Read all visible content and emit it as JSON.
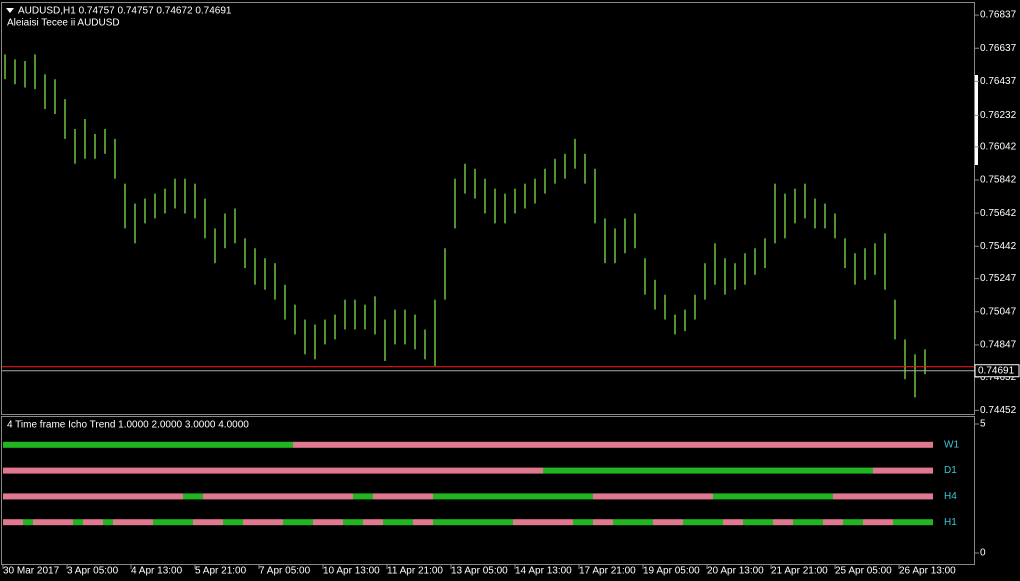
{
  "chart_data": [
    {
      "type": "hilo",
      "title": "AUDUSD,H1  0.74757 0.74757 0.74672 0.74691",
      "subtitle": "Aleiaisi Tecee ii AUDUSD",
      "color": "#6cc23a",
      "high": [
        0.766,
        0.7657,
        0.7656,
        0.766,
        0.7648,
        0.7645,
        0.7633,
        0.7615,
        0.7621,
        0.7612,
        0.7615,
        0.7609,
        0.7582,
        0.757,
        0.7573,
        0.7576,
        0.7579,
        0.7585,
        0.7585,
        0.7582,
        0.7573,
        0.7555,
        0.7564,
        0.7567,
        0.7549,
        0.7543,
        0.7537,
        0.7534,
        0.7521,
        0.7509,
        0.75,
        0.7497,
        0.75,
        0.7503,
        0.7512,
        0.7512,
        0.7509,
        0.7514,
        0.75,
        0.7506,
        0.7506,
        0.7503,
        0.7494,
        0.7512,
        0.7543,
        0.7585,
        0.7594,
        0.7591,
        0.7585,
        0.7579,
        0.7576,
        0.7579,
        0.7582,
        0.7585,
        0.7591,
        0.7597,
        0.76,
        0.7609,
        0.76,
        0.7591,
        0.7561,
        0.7555,
        0.7561,
        0.7564,
        0.7537,
        0.7524,
        0.7515,
        0.7503,
        0.7506,
        0.7515,
        0.7534,
        0.7546,
        0.7537,
        0.7534,
        0.754,
        0.7543,
        0.7549,
        0.7582,
        0.7576,
        0.7579,
        0.7582,
        0.7573,
        0.757,
        0.7564,
        0.7549,
        0.754,
        0.7543,
        0.7546,
        0.7552,
        0.7512,
        0.7488,
        0.7479,
        0.7482
      ],
      "low": [
        0.7645,
        0.7642,
        0.764,
        0.7639,
        0.7627,
        0.7624,
        0.7609,
        0.7594,
        0.7597,
        0.7597,
        0.76,
        0.7585,
        0.7555,
        0.7546,
        0.7558,
        0.7561,
        0.7564,
        0.7567,
        0.7564,
        0.7561,
        0.7549,
        0.7534,
        0.7543,
        0.7546,
        0.7531,
        0.7521,
        0.7518,
        0.7512,
        0.75,
        0.7491,
        0.7479,
        0.7476,
        0.7485,
        0.7488,
        0.7494,
        0.7494,
        0.7494,
        0.7491,
        0.7475,
        0.7485,
        0.7485,
        0.7482,
        0.7476,
        0.7472,
        0.7512,
        0.7555,
        0.7576,
        0.7573,
        0.7564,
        0.7558,
        0.7558,
        0.7564,
        0.7567,
        0.757,
        0.7576,
        0.7582,
        0.7585,
        0.7591,
        0.7582,
        0.7558,
        0.7534,
        0.7534,
        0.754,
        0.7543,
        0.7515,
        0.7506,
        0.75,
        0.7491,
        0.7493,
        0.75,
        0.7512,
        0.7521,
        0.7515,
        0.7518,
        0.7521,
        0.7527,
        0.7531,
        0.7546,
        0.7549,
        0.7558,
        0.7561,
        0.7555,
        0.7555,
        0.7549,
        0.7531,
        0.7521,
        0.7524,
        0.7527,
        0.7518,
        0.7488,
        0.7464,
        0.7453,
        0.7467
      ],
      "ylim": [
        0.7443,
        0.7691
      ],
      "yticks": [
        0.76837,
        0.76637,
        0.76437,
        0.76232,
        0.76042,
        0.75842,
        0.75642,
        0.75442,
        0.75247,
        0.75047,
        0.74847,
        0.74652,
        0.74452
      ],
      "last_price": 0.74691,
      "ask_line": 0.74715,
      "ask_color": "#ff2020",
      "x_labels": [
        "30 Mar 2017",
        "3 Apr 05:00",
        "4 Apr 13:00",
        "5 Apr 21:00",
        "7 Apr 05:00",
        "10 Apr 13:00",
        "11 Apr 21:00",
        "13 Apr 05:00",
        "14 Apr 13:00",
        "17 Apr 21:00",
        "19 Apr 05:00",
        "20 Apr 13:00",
        "21 Apr 21:00",
        "25 Apr 05:00",
        "26 Apr 13:00"
      ]
    },
    {
      "type": "timeline",
      "title": "4 Time frame Icho Trend 1.0000 2.0000 3.0000 4.0000",
      "ylim": [
        0,
        5
      ],
      "yticks": [
        5,
        0
      ],
      "rows": [
        {
          "name": "W1",
          "level": 4,
          "runs": [
            {
              "color": "#22b522",
              "bars": 29
            },
            {
              "color": "#e07890",
              "bars": 64
            }
          ]
        },
        {
          "name": "D1",
          "level": 3,
          "runs": [
            {
              "color": "#e07890",
              "bars": 54
            },
            {
              "color": "#22b522",
              "bars": 33
            },
            {
              "color": "#e07890",
              "bars": 6
            }
          ]
        },
        {
          "name": "H4",
          "level": 2,
          "runs": [
            {
              "color": "#e07890",
              "bars": 18
            },
            {
              "color": "#22b522",
              "bars": 2
            },
            {
              "color": "#e07890",
              "bars": 15
            },
            {
              "color": "#22b522",
              "bars": 2
            },
            {
              "color": "#e07890",
              "bars": 6
            },
            {
              "color": "#22b522",
              "bars": 16
            },
            {
              "color": "#e07890",
              "bars": 12
            },
            {
              "color": "#22b522",
              "bars": 12
            },
            {
              "color": "#e07890",
              "bars": 10
            }
          ]
        },
        {
          "name": "H1",
          "level": 1,
          "runs": [
            {
              "color": "#e07890",
              "bars": 2
            },
            {
              "color": "#22b522",
              "bars": 1
            },
            {
              "color": "#e07890",
              "bars": 4
            },
            {
              "color": "#22b522",
              "bars": 1
            },
            {
              "color": "#e07890",
              "bars": 2
            },
            {
              "color": "#22b522",
              "bars": 1
            },
            {
              "color": "#e07890",
              "bars": 4
            },
            {
              "color": "#22b522",
              "bars": 4
            },
            {
              "color": "#e07890",
              "bars": 3
            },
            {
              "color": "#22b522",
              "bars": 2
            },
            {
              "color": "#e07890",
              "bars": 4
            },
            {
              "color": "#22b522",
              "bars": 3
            },
            {
              "color": "#e07890",
              "bars": 3
            },
            {
              "color": "#22b522",
              "bars": 2
            },
            {
              "color": "#e07890",
              "bars": 2
            },
            {
              "color": "#22b522",
              "bars": 3
            },
            {
              "color": "#e07890",
              "bars": 2
            },
            {
              "color": "#22b522",
              "bars": 8
            },
            {
              "color": "#e07890",
              "bars": 6
            },
            {
              "color": "#22b522",
              "bars": 2
            },
            {
              "color": "#e07890",
              "bars": 2
            },
            {
              "color": "#22b522",
              "bars": 4
            },
            {
              "color": "#e07890",
              "bars": 3
            },
            {
              "color": "#22b522",
              "bars": 4
            },
            {
              "color": "#e07890",
              "bars": 2
            },
            {
              "color": "#22b522",
              "bars": 3
            },
            {
              "color": "#e07890",
              "bars": 2
            },
            {
              "color": "#22b522",
              "bars": 3
            },
            {
              "color": "#e07890",
              "bars": 2
            },
            {
              "color": "#22b522",
              "bars": 2
            },
            {
              "color": "#e07890",
              "bars": 3
            },
            {
              "color": "#22b522",
              "bars": 4
            }
          ]
        }
      ]
    }
  ]
}
